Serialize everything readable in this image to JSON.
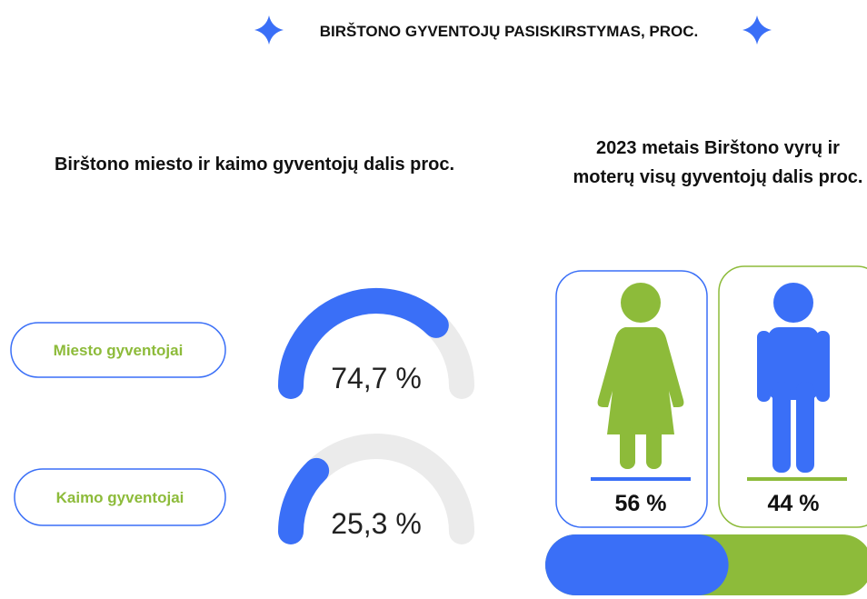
{
  "title": "BIRŠTONO GYVENTOJŲ PASISKIRSTYMAS, PROC.",
  "chart_data": [
    {
      "type": "gauge",
      "title": "Birštono miesto ir kaimo gyventojų dalis proc.",
      "categories": [
        "Miesto gyventojai",
        "Kaimo gyventojai"
      ],
      "values": [
        74.7,
        25.3
      ],
      "value_labels": [
        "74,7 %",
        "25,3 %"
      ],
      "ylim": [
        0,
        100
      ],
      "color": "#3a6ff7",
      "track_color": "#ebebeb",
      "label_color": "#8dbb3a"
    },
    {
      "type": "gender",
      "title": "2023 metais Birštono vyrų ir moterų visų gyventojų dalis proc.",
      "values": [
        56,
        44
      ],
      "value_labels": [
        "56 %",
        "44 %"
      ],
      "colors": [
        "#3a6ff7",
        "#8dbb3a"
      ],
      "ylim": [
        0,
        100
      ]
    }
  ]
}
